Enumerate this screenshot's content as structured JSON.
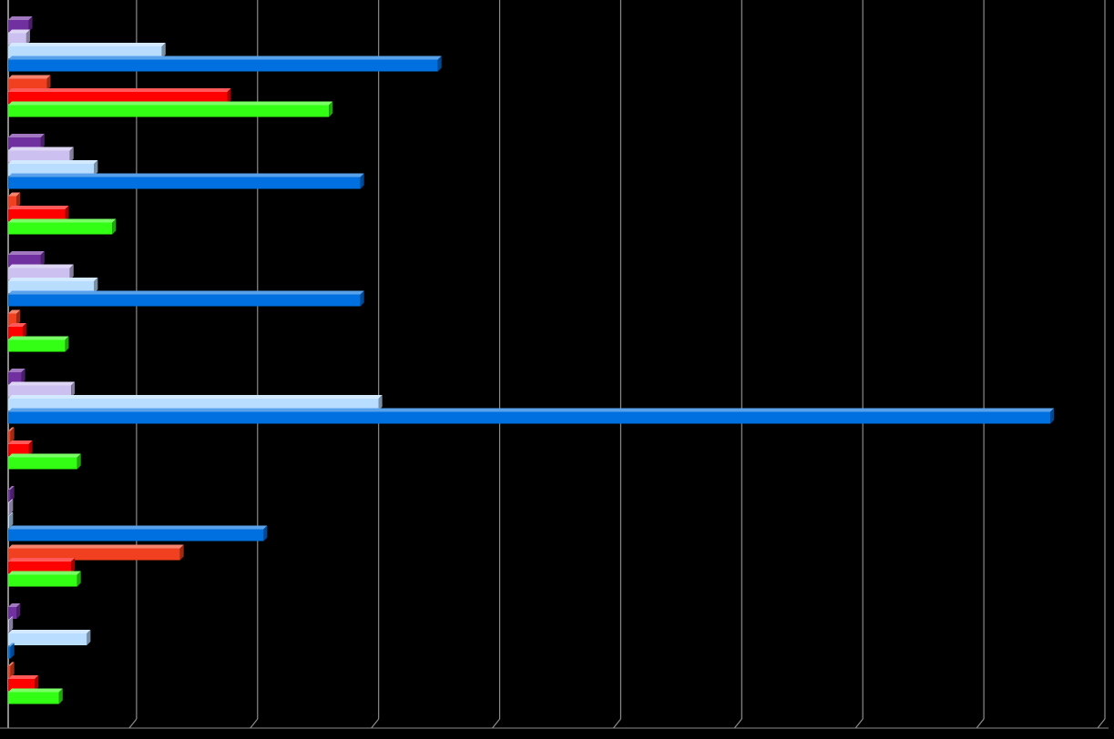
{
  "chart_data": {
    "type": "bar",
    "orientation": "horizontal",
    "style": "3d",
    "title": "",
    "xlabel": "",
    "ylabel": "",
    "xlim": [
      0,
      9
    ],
    "grid": true,
    "legend": "none",
    "background": "#000000",
    "gridline_color": "#8c8c8c",
    "groups": [
      {
        "bars": [
          {
            "color": "#7030a0",
            "value": 0.17
          },
          {
            "color": "#ccc0f0",
            "value": 0.15
          },
          {
            "color": "#b9ddff",
            "value": 1.27
          },
          {
            "color": "#0070e0",
            "value": 3.55
          }
        ]
      },
      {
        "bars": [
          {
            "color": "#f04020",
            "value": 0.32
          },
          {
            "color": "#ff0000",
            "value": 1.81
          },
          {
            "color": "#33ff14",
            "value": 2.65
          }
        ]
      },
      {
        "bars": [
          {
            "color": "#7030a0",
            "value": 0.27
          },
          {
            "color": "#ccc0f0",
            "value": 0.51
          },
          {
            "color": "#b9ddff",
            "value": 0.71
          },
          {
            "color": "#0070e0",
            "value": 2.91
          }
        ]
      },
      {
        "bars": [
          {
            "color": "#f04020",
            "value": 0.07
          },
          {
            "color": "#ff0000",
            "value": 0.47
          },
          {
            "color": "#33ff14",
            "value": 0.86
          }
        ]
      },
      {
        "bars": [
          {
            "color": "#7030a0",
            "value": 0.27
          },
          {
            "color": "#ccc0f0",
            "value": 0.51
          },
          {
            "color": "#b9ddff",
            "value": 0.71
          },
          {
            "color": "#0070e0",
            "value": 2.91
          }
        ]
      },
      {
        "bars": [
          {
            "color": "#f04020",
            "value": 0.07
          },
          {
            "color": "#ff0000",
            "value": 0.12
          },
          {
            "color": "#33ff14",
            "value": 0.47
          }
        ]
      },
      {
        "bars": [
          {
            "color": "#7030a0",
            "value": 0.11
          },
          {
            "color": "#ccc0f0",
            "value": 0.52
          },
          {
            "color": "#b9ddff",
            "value": 3.06
          },
          {
            "color": "#0070e0",
            "value": 8.61
          }
        ]
      },
      {
        "bars": [
          {
            "color": "#f04020",
            "value": 0.02
          },
          {
            "color": "#ff0000",
            "value": 0.17
          },
          {
            "color": "#33ff14",
            "value": 0.57
          }
        ]
      },
      {
        "bars": [
          {
            "color": "#7030a0",
            "value": 0.02
          },
          {
            "color": "#ccc0f0",
            "value": 0.01
          },
          {
            "color": "#b9ddff",
            "value": 0.01
          },
          {
            "color": "#0070e0",
            "value": 2.11
          }
        ]
      },
      {
        "bars": [
          {
            "color": "#f04020",
            "value": 1.42
          },
          {
            "color": "#ff0000",
            "value": 0.52
          },
          {
            "color": "#33ff14",
            "value": 0.57
          }
        ]
      },
      {
        "bars": [
          {
            "color": "#7030a0",
            "value": 0.07
          },
          {
            "color": "#ccc0f0",
            "value": 0.0
          },
          {
            "color": "#b9ddff",
            "value": 0.65
          },
          {
            "color": "#0070e0",
            "value": 0.02
          }
        ]
      },
      {
        "bars": [
          {
            "color": "#f04020",
            "value": 0.02
          },
          {
            "color": "#ff0000",
            "value": 0.22
          },
          {
            "color": "#33ff14",
            "value": 0.42
          }
        ]
      }
    ]
  }
}
